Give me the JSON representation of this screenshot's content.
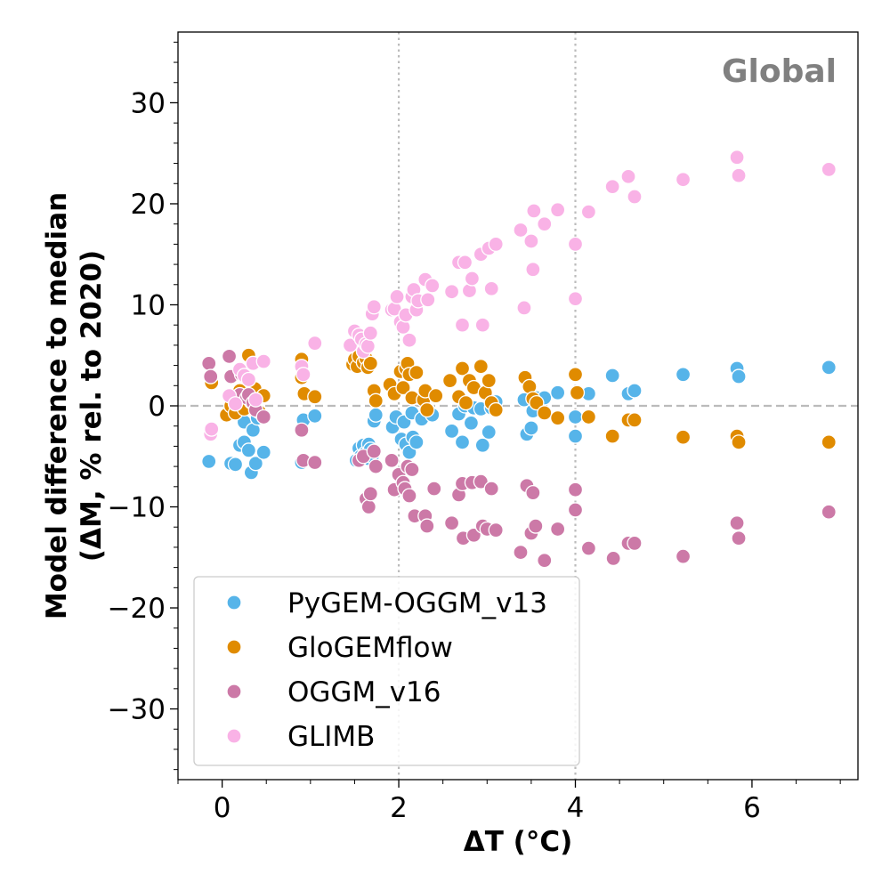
{
  "chart_data": {
    "type": "scatter",
    "title": "Global",
    "xlabel": "ΔT (°C)",
    "ylabel_line1": "Model difference to median",
    "ylabel_line2": "(ΔM, % rel. to 2020)",
    "xlim": [
      -0.5,
      7.2
    ],
    "ylim": [
      -37,
      37
    ],
    "xticks": [
      0,
      2,
      4,
      6
    ],
    "xtick_labels": [
      "0",
      "2",
      "4",
      "6"
    ],
    "yticks": [
      -30,
      -20,
      -10,
      0,
      10,
      20,
      30
    ],
    "ytick_labels": [
      "−30",
      "−20",
      "−10",
      "0",
      "10",
      "20",
      "30"
    ],
    "x_minor_step": 0.5,
    "y_minor_step": 2,
    "reference_lines": {
      "horizontal_y": 0,
      "vertical_x": [
        2,
        4
      ]
    },
    "grid": false,
    "legend_position": "lower-left",
    "series": [
      {
        "name": "PyGEM-OGGM_v13",
        "color": "#56b4e9",
        "points": [
          [
            -0.15,
            -5.5
          ],
          [
            0.1,
            -5.7
          ],
          [
            0.15,
            -5.8
          ],
          [
            0.2,
            -3.9
          ],
          [
            0.25,
            -1.6
          ],
          [
            0.25,
            -3.6
          ],
          [
            0.3,
            -4.4
          ],
          [
            0.33,
            -6.6
          ],
          [
            0.35,
            -2.4
          ],
          [
            0.38,
            -5.7
          ],
          [
            0.4,
            -1.2
          ],
          [
            0.47,
            -4.6
          ],
          [
            0.9,
            -5.6
          ],
          [
            0.92,
            -1.4
          ],
          [
            1.05,
            -1.0
          ],
          [
            1.52,
            -5.4
          ],
          [
            1.55,
            -4.2
          ],
          [
            1.57,
            -5.0
          ],
          [
            1.6,
            -3.9
          ],
          [
            1.62,
            -4.7
          ],
          [
            1.65,
            -5.2
          ],
          [
            1.66,
            -3.8
          ],
          [
            1.68,
            -4.3
          ],
          [
            1.7,
            -5.0
          ],
          [
            1.72,
            -1.5
          ],
          [
            1.74,
            -0.9
          ],
          [
            1.93,
            -2.1
          ],
          [
            1.97,
            -1.1
          ],
          [
            2.03,
            -3.3
          ],
          [
            2.06,
            -1.6
          ],
          [
            2.08,
            -3.8
          ],
          [
            2.12,
            -4.6
          ],
          [
            2.15,
            -0.7
          ],
          [
            2.16,
            -3.1
          ],
          [
            2.2,
            -3.6
          ],
          [
            2.26,
            -1.3
          ],
          [
            2.32,
            -0.3
          ],
          [
            2.38,
            -0.9
          ],
          [
            2.6,
            -2.5
          ],
          [
            2.68,
            -0.8
          ],
          [
            2.72,
            -3.6
          ],
          [
            2.75,
            0.0
          ],
          [
            2.82,
            -1.7
          ],
          [
            2.85,
            -0.2
          ],
          [
            2.93,
            -0.3
          ],
          [
            2.95,
            -3.9
          ],
          [
            3.02,
            -2.6
          ],
          [
            3.05,
            -0.2
          ],
          [
            3.1,
            0.4
          ],
          [
            3.42,
            0.6
          ],
          [
            3.45,
            -2.8
          ],
          [
            3.5,
            -2.2
          ],
          [
            3.52,
            -0.5
          ],
          [
            3.56,
            0.8
          ],
          [
            3.65,
            0.8
          ],
          [
            3.8,
            1.3
          ],
          [
            4.0,
            -1.1
          ],
          [
            4.0,
            -3.0
          ],
          [
            4.15,
            1.2
          ],
          [
            4.42,
            3.0
          ],
          [
            4.6,
            1.2
          ],
          [
            4.67,
            1.5
          ],
          [
            5.22,
            3.1
          ],
          [
            5.83,
            3.7
          ],
          [
            5.85,
            2.9
          ],
          [
            6.87,
            3.8
          ]
        ]
      },
      {
        "name": "GloGEMflow",
        "color": "#e08b00",
        "points": [
          [
            -0.12,
            2.3
          ],
          [
            0.05,
            -0.9
          ],
          [
            0.1,
            0.0
          ],
          [
            0.15,
            -0.7
          ],
          [
            0.2,
            1.5
          ],
          [
            0.25,
            -0.3
          ],
          [
            0.3,
            5.0
          ],
          [
            0.33,
            0.4
          ],
          [
            0.37,
            1.7
          ],
          [
            0.42,
            -0.6
          ],
          [
            0.47,
            1.0
          ],
          [
            0.9,
            4.6
          ],
          [
            0.9,
            2.8
          ],
          [
            0.93,
            1.2
          ],
          [
            1.05,
            0.9
          ],
          [
            1.48,
            4.1
          ],
          [
            1.5,
            4.6
          ],
          [
            1.53,
            3.9
          ],
          [
            1.55,
            4.9
          ],
          [
            1.6,
            4.3
          ],
          [
            1.63,
            4.7
          ],
          [
            1.65,
            3.8
          ],
          [
            1.68,
            4.2
          ],
          [
            1.72,
            1.5
          ],
          [
            1.74,
            0.5
          ],
          [
            1.9,
            2.1
          ],
          [
            1.95,
            1.2
          ],
          [
            2.02,
            3.4
          ],
          [
            2.05,
            1.8
          ],
          [
            2.08,
            3.7
          ],
          [
            2.1,
            4.2
          ],
          [
            2.12,
            3.1
          ],
          [
            2.15,
            0.8
          ],
          [
            2.2,
            3.3
          ],
          [
            2.28,
            0.6
          ],
          [
            2.3,
            1.5
          ],
          [
            2.32,
            -0.4
          ],
          [
            2.42,
            1.0
          ],
          [
            2.58,
            2.5
          ],
          [
            2.68,
            0.9
          ],
          [
            2.72,
            3.7
          ],
          [
            2.76,
            0.3
          ],
          [
            2.8,
            2.5
          ],
          [
            2.85,
            1.8
          ],
          [
            2.93,
            3.9
          ],
          [
            2.98,
            1.3
          ],
          [
            3.02,
            2.5
          ],
          [
            3.05,
            0.3
          ],
          [
            3.1,
            -0.4
          ],
          [
            3.43,
            2.8
          ],
          [
            3.48,
            1.9
          ],
          [
            3.52,
            0.7
          ],
          [
            3.56,
            0.3
          ],
          [
            3.65,
            -0.7
          ],
          [
            3.8,
            -1.2
          ],
          [
            4.0,
            3.1
          ],
          [
            4.02,
            1.3
          ],
          [
            4.15,
            -1.1
          ],
          [
            4.42,
            -3.0
          ],
          [
            4.6,
            -1.4
          ],
          [
            4.67,
            -1.4
          ],
          [
            5.22,
            -3.1
          ],
          [
            5.83,
            -3.0
          ],
          [
            5.85,
            -3.6
          ],
          [
            6.87,
            -3.6
          ]
        ]
      },
      {
        "name": "OGGM_v16",
        "color": "#cc79a7",
        "points": [
          [
            -0.15,
            4.2
          ],
          [
            -0.13,
            2.9
          ],
          [
            0.08,
            4.9
          ],
          [
            0.1,
            2.9
          ],
          [
            0.2,
            1.1
          ],
          [
            0.22,
            3.1
          ],
          [
            0.28,
            0.8
          ],
          [
            0.3,
            1.1
          ],
          [
            0.35,
            0.3
          ],
          [
            0.38,
            -0.4
          ],
          [
            0.47,
            -1.1
          ],
          [
            0.9,
            -2.4
          ],
          [
            0.92,
            -5.4
          ],
          [
            1.05,
            -5.6
          ],
          [
            1.55,
            -5.4
          ],
          [
            1.6,
            -5.0
          ],
          [
            1.63,
            -9.2
          ],
          [
            1.66,
            -10.0
          ],
          [
            1.68,
            -8.7
          ],
          [
            1.72,
            -4.5
          ],
          [
            1.74,
            -6.0
          ],
          [
            1.92,
            -5.4
          ],
          [
            1.95,
            -8.3
          ],
          [
            2.0,
            -6.8
          ],
          [
            2.05,
            -7.6
          ],
          [
            2.07,
            -8.2
          ],
          [
            2.1,
            -6.0
          ],
          [
            2.12,
            -8.9
          ],
          [
            2.15,
            -6.3
          ],
          [
            2.18,
            -10.9
          ],
          [
            2.3,
            -10.9
          ],
          [
            2.32,
            -11.9
          ],
          [
            2.4,
            -8.2
          ],
          [
            2.6,
            -11.6
          ],
          [
            2.68,
            -8.8
          ],
          [
            2.72,
            -7.7
          ],
          [
            2.73,
            -13.1
          ],
          [
            2.83,
            -7.6
          ],
          [
            2.85,
            -12.8
          ],
          [
            2.93,
            -7.5
          ],
          [
            2.95,
            -11.9
          ],
          [
            3.0,
            -12.2
          ],
          [
            3.05,
            -8.2
          ],
          [
            3.1,
            -12.3
          ],
          [
            3.38,
            -14.5
          ],
          [
            3.45,
            -7.9
          ],
          [
            3.5,
            -12.6
          ],
          [
            3.52,
            -8.6
          ],
          [
            3.55,
            -11.9
          ],
          [
            3.65,
            -15.3
          ],
          [
            3.8,
            -12.2
          ],
          [
            4.0,
            -8.3
          ],
          [
            4.0,
            -10.3
          ],
          [
            4.15,
            -14.1
          ],
          [
            4.43,
            -15.1
          ],
          [
            4.6,
            -13.6
          ],
          [
            4.67,
            -13.6
          ],
          [
            5.22,
            -14.9
          ],
          [
            5.83,
            -11.6
          ],
          [
            5.85,
            -13.1
          ],
          [
            6.87,
            -10.5
          ]
        ]
      },
      {
        "name": "GLIMB",
        "color": "#f9b2e6",
        "points": [
          [
            -0.13,
            -2.8
          ],
          [
            -0.12,
            -2.3
          ],
          [
            0.08,
            1.0
          ],
          [
            0.15,
            0.2
          ],
          [
            0.2,
            3.6
          ],
          [
            0.25,
            3.0
          ],
          [
            0.3,
            2.6
          ],
          [
            0.35,
            4.2
          ],
          [
            0.38,
            0.6
          ],
          [
            0.47,
            4.4
          ],
          [
            0.9,
            3.9
          ],
          [
            0.92,
            3.1
          ],
          [
            1.05,
            6.2
          ],
          [
            1.45,
            6.0
          ],
          [
            1.5,
            7.4
          ],
          [
            1.55,
            7.0
          ],
          [
            1.58,
            6.6
          ],
          [
            1.6,
            5.4
          ],
          [
            1.63,
            6.1
          ],
          [
            1.65,
            5.9
          ],
          [
            1.68,
            7.2
          ],
          [
            1.7,
            9.1
          ],
          [
            1.72,
            9.8
          ],
          [
            1.92,
            9.5
          ],
          [
            1.95,
            9.6
          ],
          [
            1.98,
            10.8
          ],
          [
            2.02,
            8.3
          ],
          [
            2.05,
            7.8
          ],
          [
            2.08,
            9.0
          ],
          [
            2.12,
            6.5
          ],
          [
            2.15,
            10.8
          ],
          [
            2.17,
            11.5
          ],
          [
            2.2,
            9.5
          ],
          [
            2.22,
            10.4
          ],
          [
            2.3,
            12.5
          ],
          [
            2.33,
            10.5
          ],
          [
            2.38,
            11.9
          ],
          [
            2.6,
            11.3
          ],
          [
            2.68,
            14.2
          ],
          [
            2.72,
            8.0
          ],
          [
            2.75,
            14.2
          ],
          [
            2.8,
            11.4
          ],
          [
            2.83,
            12.6
          ],
          [
            2.93,
            15.0
          ],
          [
            2.95,
            8.0
          ],
          [
            3.02,
            15.6
          ],
          [
            3.05,
            11.6
          ],
          [
            3.1,
            16.0
          ],
          [
            3.38,
            17.4
          ],
          [
            3.42,
            9.7
          ],
          [
            3.5,
            16.3
          ],
          [
            3.52,
            13.5
          ],
          [
            3.53,
            19.3
          ],
          [
            3.65,
            18.0
          ],
          [
            3.8,
            19.4
          ],
          [
            4.0,
            10.6
          ],
          [
            4.0,
            16.0
          ],
          [
            4.15,
            19.2
          ],
          [
            4.42,
            21.7
          ],
          [
            4.6,
            22.7
          ],
          [
            4.67,
            20.7
          ],
          [
            5.22,
            22.4
          ],
          [
            5.83,
            24.6
          ],
          [
            5.85,
            22.8
          ],
          [
            6.87,
            23.4
          ]
        ]
      }
    ]
  }
}
